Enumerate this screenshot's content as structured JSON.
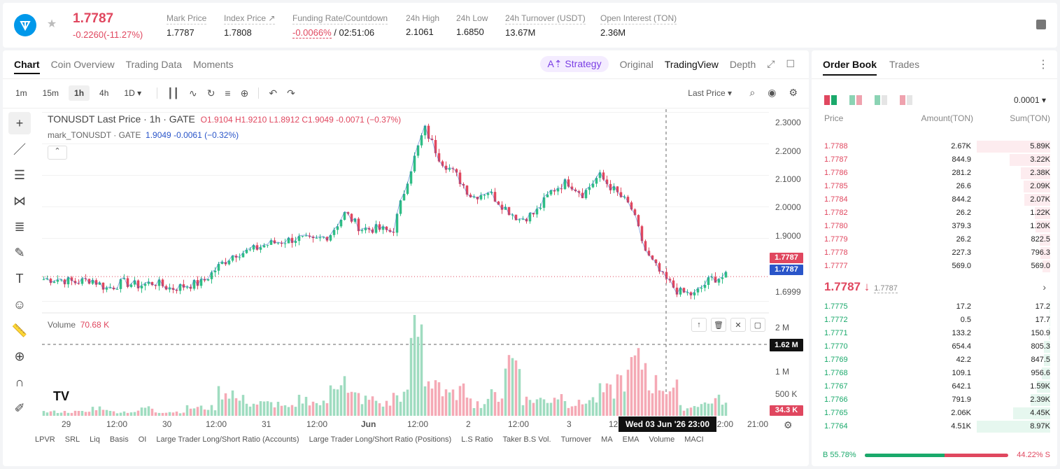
{
  "header": {
    "symbol_icon": "ton-logo",
    "last_price": "1.7787",
    "change": "-0.2260(-11.27%)",
    "stats": [
      {
        "label": "Mark Price",
        "value": "1.7787"
      },
      {
        "label": "Index Price ↗",
        "value": "1.7808"
      },
      {
        "label": "Funding Rate/Countdown",
        "value_neg": "-0.0066%",
        "value_rest": " / 02:51:06"
      },
      {
        "label": "24h High",
        "value": "2.1061"
      },
      {
        "label": "24h Low",
        "value": "1.6850"
      },
      {
        "label": "24h Turnover (USDT)",
        "value": "13.67M"
      },
      {
        "label": "Open Interest (TON)",
        "value": "2.36M"
      }
    ]
  },
  "chart_tabs": [
    "Chart",
    "Coin Overview",
    "Trading Data",
    "Moments"
  ],
  "view_tabs": {
    "strategy": "A⇡ Strategy",
    "original": "Original",
    "tradingview": "TradingView",
    "depth": "Depth"
  },
  "timeframes": [
    "1m",
    "15m",
    "1h",
    "4h",
    "1D ▾"
  ],
  "active_timeframe": "1h",
  "last_price_select": "Last Price ▾",
  "legend": {
    "title": "TONUSDT Last Price · 1h · GATE",
    "ohlc": "O1.9104 H1.9210 L1.8912 C1.9049 -0.0071 (−0.37%)",
    "mark": "mark_TONUSDT · GATE",
    "mark_vals": "1.9049 -0.0061 (−0.32%)"
  },
  "volume_legend": {
    "label": "Volume",
    "value": "70.68 K"
  },
  "price_axis": [
    "2.3000",
    "2.2000",
    "2.1000",
    "2.0000",
    "1.9000",
    "1.6999"
  ],
  "price_tags": {
    "red": "1.7787",
    "blue": "1.7787"
  },
  "volume_axis": [
    "2 M",
    "1 M",
    "500 K"
  ],
  "volume_tags": {
    "crosshair": "1.62 M",
    "last": "34.3 K"
  },
  "time_axis": [
    "29",
    "12:00",
    "30",
    "12:00",
    "31",
    "12:00",
    "Jun",
    "12:00",
    "2",
    "12:00",
    "3",
    "12",
    "12:00",
    "21:00"
  ],
  "crosshair_time": "Wed 03 Jun '26   23:00",
  "tv_logo": "TV",
  "indicators": [
    "LPVR",
    "SRL",
    "Liq",
    "Basis",
    "OI",
    "Large Trader Long/Short Ratio (Accounts)",
    "Large Trader Long/Short Ratio (Positions)",
    "L.S Ratio",
    "Taker B.S Vol.",
    "Turnover",
    "MA",
    "EMA",
    "Volume",
    "MACI"
  ],
  "chart_data": {
    "type": "candlestick",
    "title": "TONUSDT Last Price · 1h · GATE",
    "ylim": [
      1.67,
      2.31
    ],
    "y_ticks": [
      1.6999,
      1.9,
      2.0,
      2.1,
      2.2,
      2.3
    ],
    "x_ticks": [
      "29",
      "12:00",
      "30",
      "12:00",
      "31",
      "12:00",
      "Jun",
      "12:00",
      "2",
      "12:00",
      "3",
      "12",
      "12:00",
      "21:00"
    ],
    "last_close": 1.7787,
    "close_keypoints": [
      1.77,
      1.77,
      1.76,
      1.77,
      1.74,
      1.76,
      1.75,
      1.76,
      1.74,
      1.75,
      1.76,
      1.81,
      1.85,
      1.86,
      1.88,
      1.89,
      1.9,
      1.89,
      1.91,
      1.98,
      1.93,
      1.93,
      1.92,
      2.1,
      2.25,
      2.15,
      2.1,
      2.03,
      2.05,
      2.0,
      1.96,
      1.98,
      2.05,
      2.08,
      2.04,
      2.1,
      2.05,
      2.0,
      1.85,
      1.78,
      1.73,
      1.72,
      1.77,
      1.7787
    ],
    "volume_ylim": [
      0,
      2400000
    ],
    "volume_series": [
      0.1,
      0.1,
      0.1,
      0.2,
      0.1,
      0.1,
      0.2,
      0.1,
      0.1,
      0.2,
      0.2,
      0.6,
      0.4,
      0.3,
      0.3,
      0.2,
      0.4,
      0.3,
      0.9,
      0.5,
      0.4,
      0.3,
      0.5,
      2.1,
      0.9,
      0.5,
      0.6,
      0.3,
      0.5,
      1.4,
      0.4,
      0.4,
      0.5,
      0.3,
      0.4,
      0.6,
      0.9,
      1.3,
      0.8,
      0.7,
      0.2,
      0.3,
      0.4,
      0.3
    ]
  },
  "orderbook": {
    "tabs": [
      "Order Book",
      "Trades"
    ],
    "precision": "0.0001 ▾",
    "headers": {
      "price": "Price",
      "amount": "Amount(TON)",
      "sum": "Sum(TON)"
    },
    "asks": [
      {
        "p": "1.7788",
        "a": "2.67K",
        "s": "5.89K",
        "d": 1.0
      },
      {
        "p": "1.7787",
        "a": "844.9",
        "s": "3.22K",
        "d": 0.55
      },
      {
        "p": "1.7786",
        "a": "281.2",
        "s": "2.38K",
        "d": 0.4
      },
      {
        "p": "1.7785",
        "a": "26.6",
        "s": "2.09K",
        "d": 0.36
      },
      {
        "p": "1.7784",
        "a": "844.2",
        "s": "2.07K",
        "d": 0.35
      },
      {
        "p": "1.7782",
        "a": "26.2",
        "s": "1.22K",
        "d": 0.21
      },
      {
        "p": "1.7780",
        "a": "379.3",
        "s": "1.20K",
        "d": 0.2
      },
      {
        "p": "1.7779",
        "a": "26.2",
        "s": "822.5",
        "d": 0.14
      },
      {
        "p": "1.7778",
        "a": "227.3",
        "s": "796.3",
        "d": 0.13
      },
      {
        "p": "1.7777",
        "a": "569.0",
        "s": "569.0",
        "d": 0.1
      }
    ],
    "mid_price": "1.7787 ↓",
    "mid_mark": "1.7787",
    "bids": [
      {
        "p": "1.7775",
        "a": "17.2",
        "s": "17.2",
        "d": 0.01
      },
      {
        "p": "1.7772",
        "a": "0.5",
        "s": "17.7",
        "d": 0.01
      },
      {
        "p": "1.7771",
        "a": "133.2",
        "s": "150.9",
        "d": 0.02
      },
      {
        "p": "1.7770",
        "a": "654.4",
        "s": "805.3",
        "d": 0.09
      },
      {
        "p": "1.7769",
        "a": "42.2",
        "s": "847.5",
        "d": 0.09
      },
      {
        "p": "1.7768",
        "a": "109.1",
        "s": "956.6",
        "d": 0.11
      },
      {
        "p": "1.7767",
        "a": "642.1",
        "s": "1.59K",
        "d": 0.18
      },
      {
        "p": "1.7766",
        "a": "791.9",
        "s": "2.39K",
        "d": 0.27
      },
      {
        "p": "1.7765",
        "a": "2.06K",
        "s": "4.45K",
        "d": 0.5
      },
      {
        "p": "1.7764",
        "a": "4.51K",
        "s": "8.97K",
        "d": 1.0
      }
    ],
    "buy_ratio": "B 55.78%",
    "sell_ratio": "44.22% S",
    "buy_fraction": 0.5578
  }
}
